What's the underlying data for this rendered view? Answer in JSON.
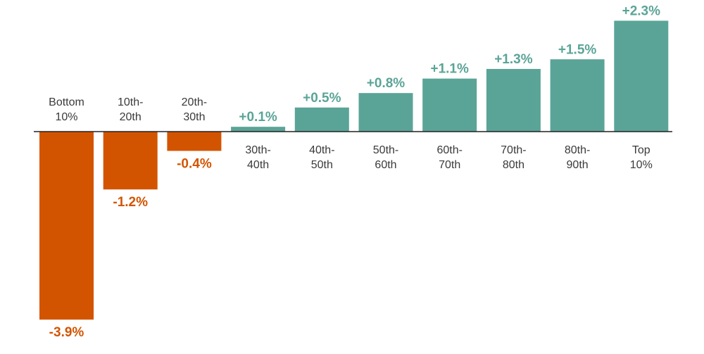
{
  "chart_data": {
    "type": "bar",
    "categories": [
      [
        "Bottom",
        "10%"
      ],
      [
        "10th-",
        "20th"
      ],
      [
        "20th-",
        "30th"
      ],
      [
        "30th-",
        "40th"
      ],
      [
        "40th-",
        "50th"
      ],
      [
        "50th-",
        "60th"
      ],
      [
        "60th-",
        "70th"
      ],
      [
        "70th-",
        "80th"
      ],
      [
        "80th-",
        "90th"
      ],
      [
        "Top",
        "10%"
      ]
    ],
    "values": [
      -3.9,
      -1.2,
      -0.4,
      0.1,
      0.5,
      0.8,
      1.1,
      1.3,
      1.5,
      2.3
    ],
    "value_labels": [
      "-3.9%",
      "-1.2%",
      "-0.4%",
      "+0.1%",
      "+0.5%",
      "+0.8%",
      "+1.1%",
      "+1.3%",
      "+1.5%",
      "+2.3%"
    ],
    "ylim": [
      -3.9,
      2.3
    ],
    "grid": false,
    "legend": "none",
    "colors": {
      "positive": "#5aa497",
      "negative": "#d35400",
      "axis": "#222222"
    }
  }
}
